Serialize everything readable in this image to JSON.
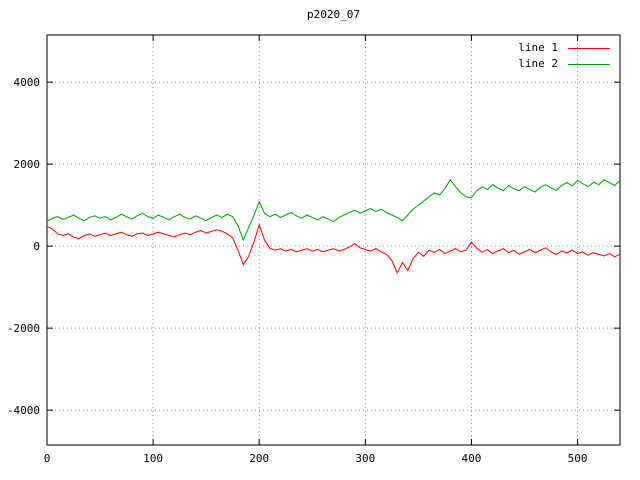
{
  "chart_data": {
    "type": "line",
    "title": "p2020_07",
    "xlabel": "",
    "ylabel": "",
    "xlim": [
      0,
      540
    ],
    "ylim": [
      -4850,
      5150
    ],
    "xticks": [
      0,
      100,
      200,
      300,
      400,
      500
    ],
    "yticks": [
      -4000,
      -2000,
      0,
      2000,
      4000
    ],
    "grid": true,
    "legend_position": "top-right",
    "background": "#ffffff",
    "x": [
      0,
      5,
      10,
      15,
      20,
      25,
      30,
      35,
      40,
      45,
      50,
      55,
      60,
      65,
      70,
      75,
      80,
      85,
      90,
      95,
      100,
      105,
      110,
      115,
      120,
      125,
      130,
      135,
      140,
      145,
      150,
      155,
      160,
      165,
      170,
      175,
      180,
      185,
      190,
      195,
      200,
      205,
      210,
      215,
      220,
      225,
      230,
      235,
      240,
      245,
      250,
      255,
      260,
      265,
      270,
      275,
      280,
      285,
      290,
      295,
      300,
      305,
      310,
      315,
      320,
      325,
      330,
      335,
      340,
      345,
      350,
      355,
      360,
      365,
      370,
      375,
      380,
      385,
      390,
      395,
      400,
      405,
      410,
      415,
      420,
      425,
      430,
      435,
      440,
      445,
      450,
      455,
      460,
      465,
      470,
      475,
      480,
      485,
      490,
      495,
      500,
      505,
      510,
      515,
      520,
      525,
      530,
      535,
      540
    ],
    "series": [
      {
        "name": "line 1",
        "color": "#ff0000",
        "values": [
          480,
          420,
          300,
          260,
          300,
          220,
          180,
          260,
          300,
          240,
          280,
          320,
          260,
          300,
          340,
          280,
          240,
          300,
          320,
          260,
          300,
          340,
          300,
          260,
          220,
          280,
          320,
          280,
          340,
          380,
          320,
          360,
          400,
          360,
          300,
          200,
          -100,
          -450,
          -250,
          100,
          520,
          150,
          -50,
          -100,
          -60,
          -120,
          -80,
          -140,
          -100,
          -60,
          -120,
          -80,
          -140,
          -100,
          -60,
          -120,
          -80,
          -20,
          60,
          -40,
          -80,
          -120,
          -60,
          -140,
          -200,
          -350,
          -650,
          -400,
          -600,
          -300,
          -150,
          -250,
          -100,
          -150,
          -80,
          -180,
          -120,
          -60,
          -140,
          -100,
          100,
          -50,
          -150,
          -80,
          -180,
          -120,
          -60,
          -160,
          -100,
          -200,
          -140,
          -80,
          -160,
          -100,
          -40,
          -140,
          -200,
          -120,
          -160,
          -100,
          -180,
          -140,
          -220,
          -160,
          -200,
          -240,
          -180,
          -260,
          -200
        ]
      },
      {
        "name": "line 2",
        "color": "#00a000",
        "values": [
          600,
          680,
          720,
          650,
          700,
          760,
          680,
          620,
          700,
          740,
          680,
          720,
          640,
          700,
          780,
          720,
          660,
          740,
          800,
          720,
          680,
          760,
          700,
          640,
          720,
          780,
          700,
          660,
          740,
          680,
          620,
          700,
          760,
          700,
          780,
          720,
          500,
          150,
          450,
          750,
          1080,
          800,
          720,
          780,
          700,
          760,
          820,
          740,
          680,
          760,
          700,
          640,
          720,
          660,
          600,
          700,
          760,
          820,
          880,
          800,
          860,
          920,
          840,
          900,
          820,
          760,
          700,
          620,
          760,
          900,
          1000,
          1100,
          1200,
          1300,
          1250,
          1400,
          1620,
          1450,
          1300,
          1200,
          1180,
          1350,
          1450,
          1380,
          1500,
          1420,
          1350,
          1480,
          1400,
          1350,
          1450,
          1380,
          1320,
          1440,
          1500,
          1420,
          1360,
          1480,
          1550,
          1470,
          1600,
          1520,
          1450,
          1560,
          1500,
          1620,
          1550,
          1480,
          1600
        ]
      }
    ]
  }
}
